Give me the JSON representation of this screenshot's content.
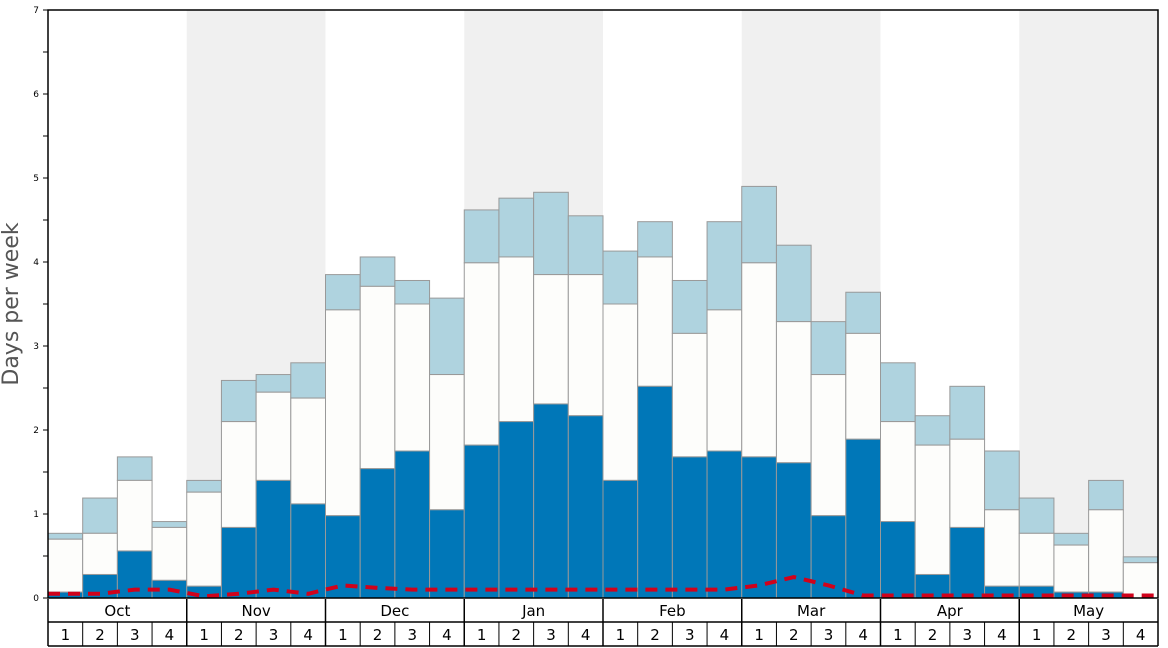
{
  "chart_data": {
    "type": "bar",
    "ylabel": "Days per week",
    "ylim": [
      0,
      7
    ],
    "yticks": [
      "0",
      "1",
      "2",
      "3",
      "4",
      "5",
      "6",
      "7"
    ],
    "months": [
      "Oct",
      "Nov",
      "Dec",
      "Jan",
      "Feb",
      "Mar",
      "Apr",
      "May"
    ],
    "weeks_per_month": [
      "1",
      "2",
      "3",
      "4"
    ],
    "colors": {
      "dark_segment": "#0077b8",
      "white_segment": "#fdfdfb",
      "light_segment": "#afd3df",
      "dashed_line": "#d0021b",
      "band_shade": "#f0f0f0"
    },
    "series": [
      {
        "key": "dark",
        "values": [
          0.07,
          0.28,
          0.56,
          0.21,
          0.14,
          0.84,
          1.4,
          1.12,
          0.98,
          1.54,
          1.75,
          1.05,
          1.82,
          2.1,
          2.31,
          2.17,
          1.4,
          2.52,
          1.68,
          1.75,
          1.68,
          1.61,
          0.98,
          1.89,
          0.91,
          0.28,
          0.84,
          0.14,
          0.14,
          0.07,
          0.07,
          0.0
        ]
      },
      {
        "key": "white_top",
        "values": [
          0.7,
          0.77,
          1.4,
          0.84,
          1.26,
          2.1,
          2.45,
          2.38,
          3.43,
          3.71,
          3.5,
          2.66,
          3.99,
          4.06,
          3.85,
          3.85,
          3.5,
          4.06,
          3.15,
          3.43,
          3.99,
          3.29,
          2.66,
          3.15,
          2.1,
          1.82,
          1.89,
          1.05,
          0.77,
          0.63,
          1.05,
          0.42
        ]
      },
      {
        "key": "light_top",
        "values": [
          0.77,
          1.19,
          1.68,
          0.91,
          1.4,
          2.59,
          2.66,
          2.8,
          3.85,
          4.06,
          3.78,
          3.57,
          4.62,
          4.76,
          4.83,
          4.55,
          4.13,
          4.48,
          3.78,
          4.48,
          4.9,
          4.2,
          3.29,
          3.64,
          2.8,
          2.17,
          2.52,
          1.75,
          1.19,
          0.77,
          1.4,
          0.49
        ]
      },
      {
        "key": "dashed",
        "values": [
          0.05,
          0.05,
          0.1,
          0.1,
          0.02,
          0.05,
          0.1,
          0.05,
          0.15,
          0.12,
          0.1,
          0.1,
          0.1,
          0.1,
          0.1,
          0.1,
          0.1,
          0.1,
          0.1,
          0.1,
          0.15,
          0.25,
          0.15,
          0.03,
          0.03,
          0.03,
          0.03,
          0.03,
          0.03,
          0.03,
          0.03,
          0.03
        ]
      }
    ]
  }
}
